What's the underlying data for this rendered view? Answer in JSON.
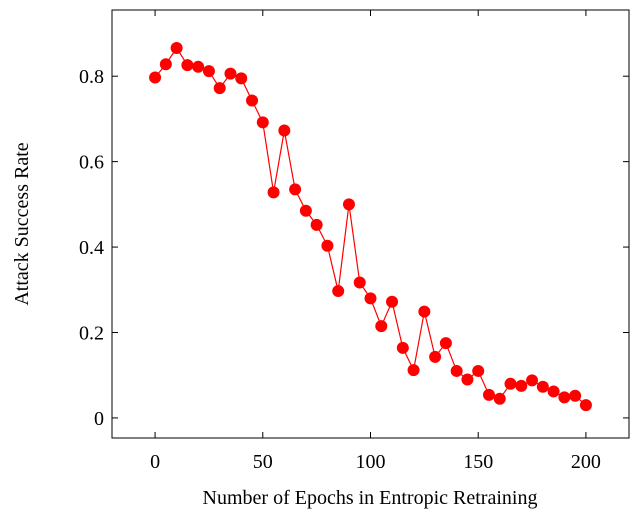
{
  "chart_data": {
    "type": "line",
    "xlabel": "Number of Epochs in Entropic Retraining",
    "ylabel": "Attack Success Rate",
    "xlim": [
      -20,
      220
    ],
    "ylim": [
      -0.047,
      0.955
    ],
    "xticks": [
      0,
      50,
      100,
      150,
      200
    ],
    "yticks": [
      0,
      0.2,
      0.4,
      0.6,
      0.8
    ],
    "xtick_labels": [
      "0",
      "50",
      "100",
      "150",
      "200"
    ],
    "ytick_labels": [
      "0",
      "0.2",
      "0.4",
      "0.6",
      "0.8"
    ],
    "grid": false,
    "legend": "none",
    "series": [
      {
        "color": "#ff0000",
        "marker": "circle",
        "x": [
          0,
          5,
          10,
          15,
          20,
          25,
          30,
          35,
          40,
          45,
          50,
          55,
          60,
          65,
          70,
          75,
          80,
          85,
          90,
          95,
          100,
          105,
          110,
          115,
          120,
          125,
          130,
          135,
          140,
          145,
          150,
          155,
          160,
          165,
          170,
          175,
          180,
          185,
          190,
          195,
          200
        ],
        "y": [
          0.797,
          0.828,
          0.866,
          0.826,
          0.822,
          0.812,
          0.772,
          0.806,
          0.795,
          0.743,
          0.692,
          0.528,
          0.673,
          0.535,
          0.485,
          0.452,
          0.403,
          0.297,
          0.5,
          0.317,
          0.28,
          0.215,
          0.272,
          0.164,
          0.112,
          0.249,
          0.143,
          0.175,
          0.11,
          0.09,
          0.11,
          0.054,
          0.045,
          0.08,
          0.075,
          0.088,
          0.073,
          0.062,
          0.048,
          0.052,
          0.03
        ]
      }
    ]
  }
}
